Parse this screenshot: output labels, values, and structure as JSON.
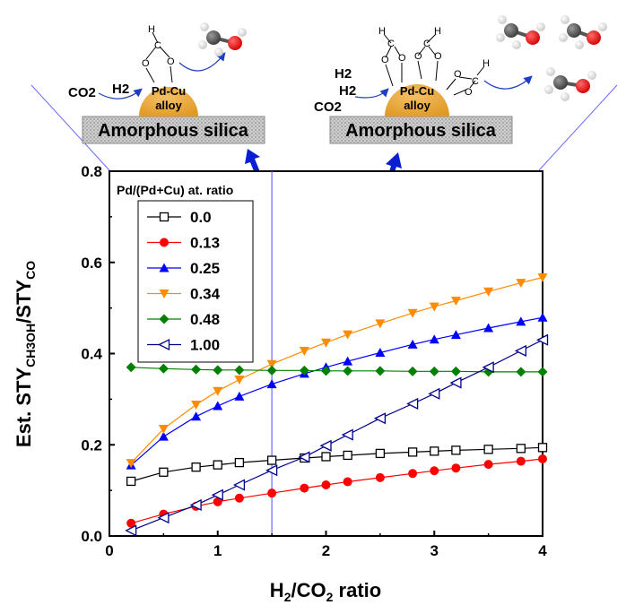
{
  "chart_data": {
    "type": "line",
    "xlabel": "H2/CO2 ratio",
    "ylabel": "Est. STYCH3OH/STYCO",
    "xlim": [
      0,
      4
    ],
    "ylim": [
      0,
      0.8
    ],
    "xticks": [
      0,
      1,
      2,
      3,
      4
    ],
    "yticks": [
      0.0,
      0.2,
      0.4,
      0.6,
      0.8
    ],
    "legend_title": "Pd/(Pd+Cu) at. ratio",
    "legend_position": "top-left",
    "reference_line_x": 1.5,
    "series": [
      {
        "name": "0.0",
        "color": "#000000",
        "marker": "square-open",
        "points": [
          [
            0.2,
            0.12
          ],
          [
            0.5,
            0.14
          ],
          [
            0.8,
            0.151
          ],
          [
            1.0,
            0.156
          ],
          [
            1.2,
            0.161
          ],
          [
            1.5,
            0.166
          ],
          [
            1.8,
            0.171
          ],
          [
            2.0,
            0.174
          ],
          [
            2.2,
            0.177
          ],
          [
            2.5,
            0.181
          ],
          [
            2.8,
            0.184
          ],
          [
            3.0,
            0.186
          ],
          [
            3.2,
            0.188
          ],
          [
            3.5,
            0.19
          ],
          [
            3.8,
            0.192
          ],
          [
            4.0,
            0.194
          ]
        ]
      },
      {
        "name": "0.13",
        "color": "#ff0000",
        "marker": "circle",
        "points": [
          [
            0.2,
            0.028
          ],
          [
            0.5,
            0.048
          ],
          [
            0.8,
            0.065
          ],
          [
            1.0,
            0.075
          ],
          [
            1.2,
            0.083
          ],
          [
            1.5,
            0.094
          ],
          [
            1.8,
            0.105
          ],
          [
            2.0,
            0.112
          ],
          [
            2.2,
            0.119
          ],
          [
            2.5,
            0.128
          ],
          [
            2.8,
            0.137
          ],
          [
            3.0,
            0.143
          ],
          [
            3.2,
            0.149
          ],
          [
            3.5,
            0.157
          ],
          [
            3.8,
            0.164
          ],
          [
            4.0,
            0.169
          ]
        ]
      },
      {
        "name": "0.25",
        "color": "#0000ff",
        "marker": "triangle-up",
        "points": [
          [
            0.2,
            0.155
          ],
          [
            0.5,
            0.218
          ],
          [
            0.8,
            0.262
          ],
          [
            1.0,
            0.285
          ],
          [
            1.2,
            0.306
          ],
          [
            1.5,
            0.333
          ],
          [
            1.8,
            0.356
          ],
          [
            2.0,
            0.37
          ],
          [
            2.2,
            0.383
          ],
          [
            2.5,
            0.402
          ],
          [
            2.8,
            0.42
          ],
          [
            3.0,
            0.431
          ],
          [
            3.2,
            0.441
          ],
          [
            3.5,
            0.456
          ],
          [
            3.8,
            0.47
          ],
          [
            4.0,
            0.479
          ]
        ]
      },
      {
        "name": "0.34",
        "color": "#ff8c00",
        "marker": "triangle-down",
        "points": [
          [
            0.2,
            0.16
          ],
          [
            0.5,
            0.235
          ],
          [
            0.8,
            0.288
          ],
          [
            1.0,
            0.318
          ],
          [
            1.2,
            0.343
          ],
          [
            1.5,
            0.377
          ],
          [
            1.8,
            0.406
          ],
          [
            2.0,
            0.424
          ],
          [
            2.2,
            0.442
          ],
          [
            2.5,
            0.466
          ],
          [
            2.8,
            0.489
          ],
          [
            3.0,
            0.503
          ],
          [
            3.2,
            0.516
          ],
          [
            3.5,
            0.536
          ],
          [
            3.8,
            0.555
          ],
          [
            4.0,
            0.567
          ]
        ]
      },
      {
        "name": "0.48",
        "color": "#008000",
        "marker": "diamond",
        "points": [
          [
            0.2,
            0.37
          ],
          [
            0.5,
            0.367
          ],
          [
            0.8,
            0.365
          ],
          [
            1.0,
            0.364
          ],
          [
            1.2,
            0.364
          ],
          [
            1.5,
            0.363
          ],
          [
            1.8,
            0.363
          ],
          [
            2.0,
            0.362
          ],
          [
            2.2,
            0.362
          ],
          [
            2.5,
            0.362
          ],
          [
            2.8,
            0.361
          ],
          [
            3.0,
            0.361
          ],
          [
            3.2,
            0.361
          ],
          [
            3.5,
            0.36
          ],
          [
            3.8,
            0.36
          ],
          [
            4.0,
            0.36
          ]
        ]
      },
      {
        "name": "1.00",
        "color": "#00008b",
        "marker": "triangle-left-open",
        "points": [
          [
            0.2,
            0.012
          ],
          [
            0.5,
            0.04
          ],
          [
            0.8,
            0.068
          ],
          [
            1.0,
            0.09
          ],
          [
            1.2,
            0.112
          ],
          [
            1.5,
            0.144
          ],
          [
            1.8,
            0.173
          ],
          [
            2.0,
            0.198
          ],
          [
            2.2,
            0.222
          ],
          [
            2.5,
            0.258
          ],
          [
            2.8,
            0.29
          ],
          [
            3.0,
            0.312
          ],
          [
            3.2,
            0.336
          ],
          [
            3.5,
            0.37
          ],
          [
            3.8,
            0.406
          ],
          [
            4.0,
            0.43
          ]
        ]
      }
    ]
  },
  "illustration": {
    "support_label": "Amorphous silica",
    "alloy_line1": "Pd-Cu",
    "alloy_line2": "alloy",
    "left_reactant_1": "CO2",
    "left_reactant_2": "H2",
    "right_reactant_1": "H2",
    "right_reactant_2": "H2",
    "right_reactant_3": "CO2"
  }
}
